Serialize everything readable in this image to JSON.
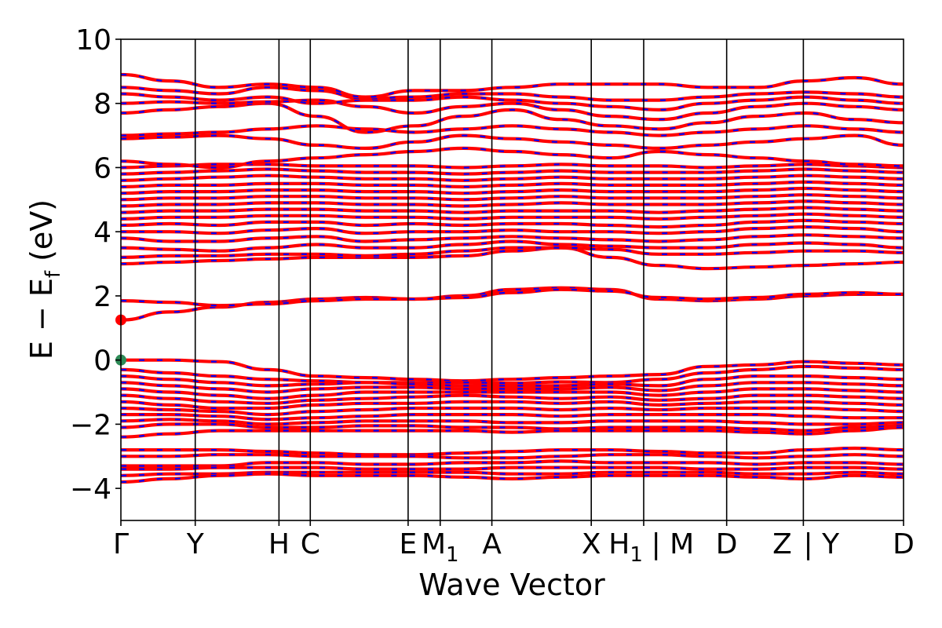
{
  "chart_data": {
    "type": "line",
    "title": "",
    "xlabel": "Wave Vector",
    "ylabel": "E − E_f (eV)",
    "ylabel_parts": {
      "main": "E − E",
      "sub": "f",
      "unit": " (eV)"
    },
    "ylim": [
      -5,
      10
    ],
    "y_ticks": [
      -4,
      -2,
      0,
      2,
      4,
      6,
      8,
      10
    ],
    "y_tick_labels": [
      "−4",
      "−2",
      "0",
      "2",
      "4",
      "6",
      "8",
      "10"
    ],
    "grid": false,
    "legend": "none",
    "kpath": [
      {
        "label": "Γ",
        "x": 0.0
      },
      {
        "label": "Y",
        "x": 0.095
      },
      {
        "label": "H",
        "x": 0.202
      },
      {
        "label": "C",
        "x": 0.242
      },
      {
        "label": "E",
        "x": 0.367
      },
      {
        "label": "M₁",
        "x": 0.408
      },
      {
        "label": "A",
        "x": 0.474
      },
      {
        "label": "X",
        "x": 0.601
      },
      {
        "label": "H₁ | M",
        "x": 0.668
      },
      {
        "label": "D",
        "x": 0.774
      },
      {
        "label": "Z | Y",
        "x": 0.872
      },
      {
        "label": "D",
        "x": 1.0
      }
    ],
    "tick_labels_display": [
      {
        "text": "Γ",
        "x": 0.0
      },
      {
        "text": "Y",
        "x": 0.095
      },
      {
        "text": "H",
        "x": 0.202
      },
      {
        "text": "C",
        "x": 0.242
      },
      {
        "text": "E",
        "x": 0.367
      },
      {
        "text": "M",
        "sub": "1",
        "x": 0.408
      },
      {
        "text": "A",
        "x": 0.474
      },
      {
        "text": "X",
        "x": 0.601
      },
      {
        "text": "H",
        "sub": "1",
        "x": 0.645
      },
      {
        "text": "| M",
        "x": 0.705
      },
      {
        "text": "D",
        "x": 0.774
      },
      {
        "text": "Z",
        "x": 0.845
      },
      {
        "text": "| Y",
        "x": 0.895
      },
      {
        "text": "D",
        "x": 1.0
      }
    ],
    "colors": {
      "spin_up": "#ff0000",
      "spin_down": "#0000ff",
      "markers": "#ff0000",
      "vbm_marker": "#2e8b57"
    },
    "markers": [
      {
        "name": "cbm",
        "x": 0.0,
        "y": 1.25,
        "color": "#ff0000"
      },
      {
        "name": "vbm",
        "x": 0.0,
        "y": 0.0,
        "color": "#2e8b57"
      }
    ],
    "series_groups": [
      {
        "name": "valence",
        "bands": [
          [
            0.0,
            0.0,
            -0.05,
            -0.3,
            -0.5,
            -0.55,
            -0.6,
            -0.65,
            -0.6,
            -0.55,
            -0.5,
            -0.45,
            -0.2,
            -0.15,
            -0.05,
            -0.1,
            -0.15
          ],
          [
            -0.3,
            -0.4,
            -0.5,
            -0.6,
            -0.65,
            -0.7,
            -0.7,
            -0.7,
            -0.72,
            -0.68,
            -0.7,
            -0.6,
            -0.4,
            -0.3,
            -0.2,
            -0.25,
            -0.3
          ],
          [
            -0.5,
            -0.6,
            -0.7,
            -0.8,
            -0.75,
            -0.7,
            -0.75,
            -0.8,
            -0.8,
            -0.8,
            -0.75,
            -0.8,
            -0.6,
            -0.5,
            -0.5,
            -0.55,
            -0.6
          ],
          [
            -0.7,
            -0.8,
            -0.9,
            -1.0,
            -0.9,
            -0.85,
            -0.85,
            -0.9,
            -0.9,
            -0.9,
            -0.85,
            -0.95,
            -0.8,
            -0.7,
            -0.7,
            -0.75,
            -0.8
          ],
          [
            -0.9,
            -1.0,
            -1.1,
            -1.2,
            -1.1,
            -1.0,
            -1.0,
            -1.0,
            -1.0,
            -1.0,
            -1.0,
            -1.1,
            -1.0,
            -0.9,
            -0.9,
            -0.95,
            -1.0
          ],
          [
            -1.1,
            -1.2,
            -1.3,
            -1.35,
            -1.25,
            -1.2,
            -1.15,
            -1.1,
            -1.15,
            -1.2,
            -1.15,
            -1.25,
            -1.2,
            -1.1,
            -1.1,
            -1.15,
            -1.2
          ],
          [
            -1.3,
            -1.4,
            -1.5,
            -1.5,
            -1.4,
            -1.35,
            -1.35,
            -1.3,
            -1.3,
            -1.35,
            -1.3,
            -1.4,
            -1.35,
            -1.3,
            -1.3,
            -1.35,
            -1.4
          ],
          [
            -1.5,
            -1.55,
            -1.6,
            -1.7,
            -1.6,
            -1.55,
            -1.5,
            -1.5,
            -1.5,
            -1.55,
            -1.5,
            -1.55,
            -1.5,
            -1.5,
            -1.5,
            -1.55,
            -1.6
          ],
          [
            -1.7,
            -1.7,
            -1.75,
            -1.85,
            -1.8,
            -1.75,
            -1.7,
            -1.7,
            -1.7,
            -1.75,
            -1.7,
            -1.7,
            -1.7,
            -1.7,
            -1.75,
            -1.8,
            -1.8
          ],
          [
            -1.9,
            -1.85,
            -1.9,
            -2.0,
            -1.95,
            -1.9,
            -1.9,
            -1.9,
            -1.95,
            -1.95,
            -1.9,
            -1.9,
            -1.9,
            -1.95,
            -2.0,
            -2.0,
            -1.95
          ],
          [
            -2.1,
            -2.0,
            -2.0,
            -2.1,
            -2.1,
            -2.05,
            -2.05,
            -2.1,
            -2.1,
            -2.15,
            -2.1,
            -2.1,
            -2.1,
            -2.15,
            -2.2,
            -2.1,
            -2.05
          ],
          [
            -2.4,
            -2.3,
            -2.2,
            -2.2,
            -2.2,
            -2.2,
            -2.2,
            -2.2,
            -2.25,
            -2.2,
            -2.2,
            -2.2,
            -2.2,
            -2.25,
            -2.3,
            -2.2,
            -2.1
          ],
          [
            -2.8,
            -2.8,
            -2.8,
            -2.85,
            -2.9,
            -2.95,
            -2.95,
            -2.9,
            -2.85,
            -2.8,
            -2.8,
            -2.85,
            -2.9,
            -2.9,
            -2.8,
            -2.75,
            -2.8
          ],
          [
            -3.0,
            -3.0,
            -2.95,
            -2.95,
            -3.0,
            -3.0,
            -3.0,
            -3.05,
            -3.05,
            -3.0,
            -2.95,
            -2.95,
            -3.0,
            -3.05,
            -3.0,
            -2.95,
            -3.0
          ],
          [
            -3.3,
            -3.3,
            -3.3,
            -3.2,
            -3.2,
            -3.25,
            -3.25,
            -3.2,
            -3.2,
            -3.15,
            -3.2,
            -3.2,
            -3.2,
            -3.25,
            -3.2,
            -3.2,
            -3.25
          ],
          [
            -3.4,
            -3.4,
            -3.35,
            -3.35,
            -3.35,
            -3.4,
            -3.4,
            -3.4,
            -3.35,
            -3.35,
            -3.35,
            -3.35,
            -3.4,
            -3.4,
            -3.35,
            -3.35,
            -3.4
          ],
          [
            -3.6,
            -3.55,
            -3.55,
            -3.5,
            -3.5,
            -3.5,
            -3.5,
            -3.5,
            -3.55,
            -3.55,
            -3.5,
            -3.5,
            -3.5,
            -3.55,
            -3.55,
            -3.5,
            -3.55
          ],
          [
            -3.8,
            -3.7,
            -3.6,
            -3.55,
            -3.6,
            -3.6,
            -3.6,
            -3.65,
            -3.7,
            -3.65,
            -3.6,
            -3.6,
            -3.6,
            -3.65,
            -3.7,
            -3.6,
            -3.65
          ]
        ]
      },
      {
        "name": "conduction_low",
        "bands": [
          [
            1.25,
            1.5,
            1.65,
            1.8,
            1.9,
            1.95,
            1.9,
            2.0,
            2.2,
            2.25,
            2.2,
            1.9,
            1.85,
            1.9,
            2.0,
            2.05,
            2.05
          ],
          [
            1.85,
            1.8,
            1.7,
            1.75,
            1.85,
            1.9,
            1.9,
            1.95,
            2.1,
            2.2,
            2.15,
            1.95,
            1.9,
            1.95,
            2.05,
            2.1,
            2.05
          ]
        ]
      },
      {
        "name": "conduction_high",
        "bands": [
          [
            3.0,
            3.05,
            3.1,
            3.15,
            3.2,
            3.2,
            3.2,
            3.25,
            3.4,
            3.5,
            3.2,
            2.95,
            2.85,
            2.9,
            2.95,
            3.0,
            3.05
          ],
          [
            3.2,
            3.25,
            3.25,
            3.3,
            3.3,
            3.25,
            3.3,
            3.4,
            3.5,
            3.5,
            3.45,
            3.3,
            3.3,
            3.35,
            3.4,
            3.4,
            3.35
          ],
          [
            3.5,
            3.45,
            3.4,
            3.5,
            3.6,
            3.5,
            3.5,
            3.6,
            3.7,
            3.6,
            3.55,
            3.5,
            3.5,
            3.6,
            3.65,
            3.6,
            3.5
          ],
          [
            3.8,
            3.7,
            3.7,
            3.8,
            3.85,
            3.7,
            3.75,
            3.8,
            3.85,
            3.8,
            3.75,
            3.7,
            3.75,
            3.85,
            3.9,
            3.85,
            3.8
          ],
          [
            4.0,
            4.0,
            3.95,
            4.05,
            4.1,
            3.95,
            4.0,
            4.0,
            4.05,
            4.0,
            4.0,
            3.95,
            4.0,
            4.1,
            4.15,
            4.1,
            4.0
          ],
          [
            4.2,
            4.25,
            4.2,
            4.3,
            4.3,
            4.2,
            4.25,
            4.2,
            4.25,
            4.25,
            4.2,
            4.15,
            4.2,
            4.3,
            4.35,
            4.3,
            4.25
          ],
          [
            4.4,
            4.45,
            4.45,
            4.5,
            4.5,
            4.45,
            4.45,
            4.4,
            4.45,
            4.45,
            4.45,
            4.4,
            4.45,
            4.5,
            4.55,
            4.5,
            4.45
          ],
          [
            4.6,
            4.65,
            4.65,
            4.7,
            4.7,
            4.65,
            4.65,
            4.6,
            4.65,
            4.65,
            4.65,
            4.6,
            4.65,
            4.7,
            4.75,
            4.7,
            4.65
          ],
          [
            4.8,
            4.85,
            4.85,
            4.9,
            4.9,
            4.85,
            4.85,
            4.8,
            4.85,
            4.9,
            4.85,
            4.85,
            4.85,
            4.9,
            4.95,
            4.9,
            4.85
          ],
          [
            5.0,
            5.05,
            5.05,
            5.1,
            5.1,
            5.05,
            5.05,
            5.0,
            5.05,
            5.1,
            5.05,
            5.05,
            5.05,
            5.1,
            5.15,
            5.1,
            5.05
          ],
          [
            5.2,
            5.25,
            5.25,
            5.3,
            5.3,
            5.25,
            5.25,
            5.2,
            5.25,
            5.3,
            5.25,
            5.25,
            5.25,
            5.3,
            5.35,
            5.3,
            5.25
          ],
          [
            5.4,
            5.45,
            5.45,
            5.5,
            5.5,
            5.45,
            5.45,
            5.4,
            5.45,
            5.5,
            5.45,
            5.45,
            5.45,
            5.5,
            5.55,
            5.5,
            5.45
          ],
          [
            5.6,
            5.65,
            5.7,
            5.75,
            5.7,
            5.65,
            5.65,
            5.6,
            5.65,
            5.7,
            5.65,
            5.65,
            5.65,
            5.7,
            5.75,
            5.7,
            5.65
          ],
          [
            5.8,
            5.85,
            5.9,
            5.95,
            5.9,
            5.85,
            5.85,
            5.8,
            5.85,
            5.9,
            5.85,
            5.85,
            5.85,
            5.9,
            5.95,
            5.9,
            5.85
          ],
          [
            6.0,
            6.05,
            6.1,
            6.1,
            6.05,
            6.05,
            6.05,
            6.0,
            6.05,
            6.1,
            6.05,
            6.05,
            6.0,
            6.05,
            6.1,
            6.05,
            6.0
          ],
          [
            6.2,
            6.1,
            6.0,
            6.2,
            6.3,
            6.4,
            6.5,
            6.6,
            6.5,
            6.4,
            6.3,
            6.5,
            6.4,
            6.3,
            6.2,
            6.1,
            6.05
          ],
          [
            6.9,
            6.95,
            7.0,
            6.9,
            6.7,
            6.6,
            6.8,
            7.0,
            6.9,
            6.8,
            6.7,
            6.6,
            6.7,
            6.8,
            6.9,
            7.0,
            6.7
          ],
          [
            7.0,
            7.05,
            7.1,
            7.2,
            7.3,
            7.2,
            7.1,
            7.2,
            7.3,
            7.2,
            7.1,
            7.0,
            7.1,
            7.2,
            7.3,
            7.2,
            7.1
          ],
          [
            7.7,
            7.8,
            7.9,
            8.0,
            7.6,
            7.1,
            7.3,
            7.6,
            7.8,
            7.5,
            7.3,
            7.2,
            7.4,
            7.6,
            7.7,
            7.5,
            7.4
          ],
          [
            8.0,
            8.05,
            8.0,
            8.05,
            8.1,
            7.9,
            7.7,
            7.9,
            8.0,
            7.8,
            7.6,
            7.5,
            7.7,
            7.9,
            8.0,
            7.9,
            7.8
          ],
          [
            8.3,
            8.2,
            8.1,
            8.2,
            8.0,
            8.1,
            8.1,
            8.2,
            8.1,
            8.0,
            7.9,
            7.8,
            8.0,
            8.1,
            8.2,
            8.1,
            8.0
          ],
          [
            8.5,
            8.4,
            8.3,
            8.5,
            8.4,
            8.15,
            8.2,
            8.3,
            8.3,
            8.2,
            8.1,
            8.1,
            8.2,
            8.3,
            8.35,
            8.3,
            8.2
          ],
          [
            8.9,
            8.7,
            8.5,
            8.6,
            8.5,
            8.2,
            8.4,
            8.4,
            8.5,
            8.6,
            8.6,
            8.6,
            8.5,
            8.5,
            8.7,
            8.8,
            8.6
          ]
        ]
      }
    ]
  }
}
